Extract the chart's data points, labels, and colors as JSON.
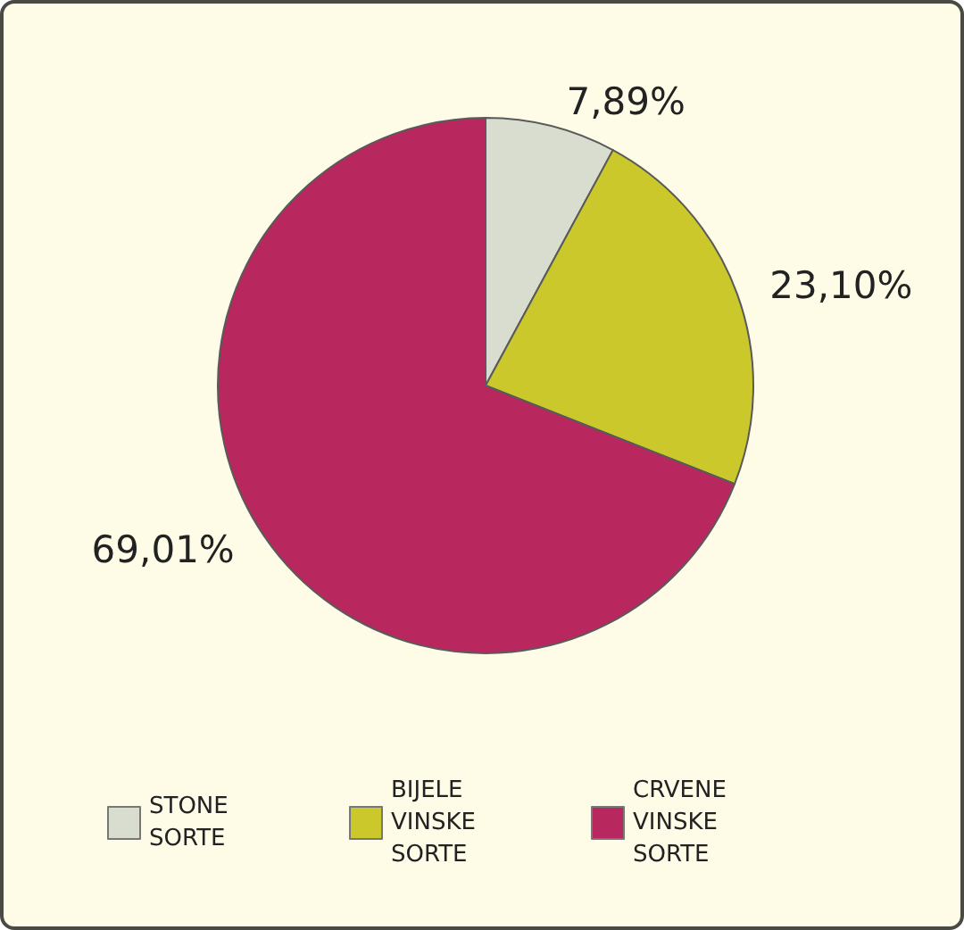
{
  "chart_data": {
    "type": "pie",
    "categories": [
      "STONE SORTE",
      "BIJELE VINSKE SORTE",
      "CRVENE VINSKE SORTE"
    ],
    "values": [
      7.89,
      23.1,
      69.01
    ],
    "colors": [
      "#d8ddd0",
      "#cbc82c",
      "#b8285e"
    ],
    "value_labels": [
      "7,89%",
      "23,10%",
      "69,01%"
    ],
    "legend": "bottom"
  }
}
